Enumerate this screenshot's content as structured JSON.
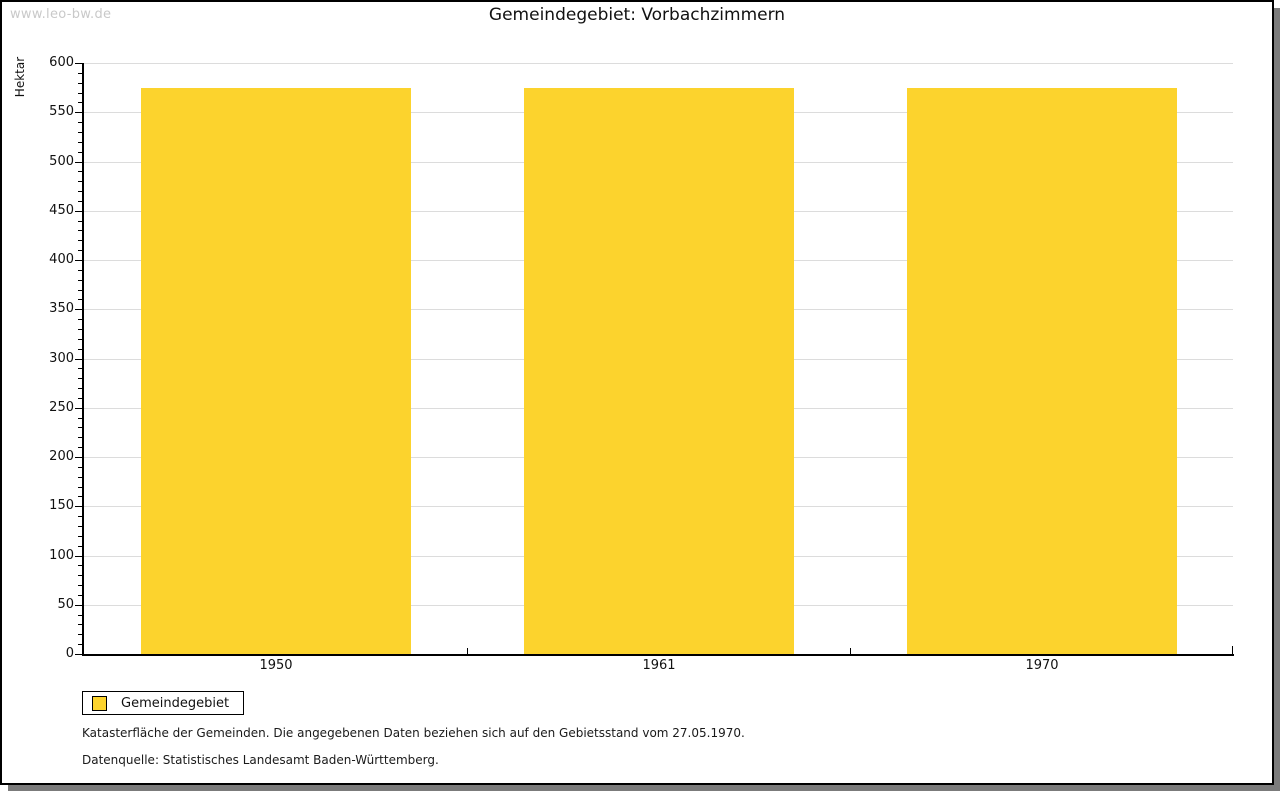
{
  "watermark": "www.leo-bw.de",
  "title": "Gemeindegebiet: Vorbachzimmern",
  "chart_data": {
    "type": "bar",
    "title": "Gemeindegebiet: Vorbachzimmern",
    "categories": [
      "1950",
      "1961",
      "1970"
    ],
    "series": [
      {
        "name": "Gemeindegebiet",
        "values": [
          575,
          575,
          575
        ],
        "color": "#FCD32D"
      }
    ],
    "xlabel": "",
    "ylabel": "Hektar",
    "ylim": [
      0,
      600
    ],
    "y_major_step": 50,
    "y_minor_step": 10,
    "grid": true,
    "legend_position": "bottom-left"
  },
  "legend": {
    "items": [
      {
        "label": "Gemeindegebiet",
        "color": "#FCD32D"
      }
    ]
  },
  "footnotes": [
    "Katasterfläche der Gemeinden. Die angegebenen Daten beziehen sich auf den Gebietsstand vom 27.05.1970.",
    "Datenquelle: Statistisches Landesamt Baden-Württemberg."
  ],
  "colors": {
    "bar": "#FCD32D",
    "grid": "#DCDCDC",
    "axis": "#000000",
    "watermark": "#C9C9C9",
    "background": "#FFFFFF",
    "shadow": "#7B7B7B"
  }
}
